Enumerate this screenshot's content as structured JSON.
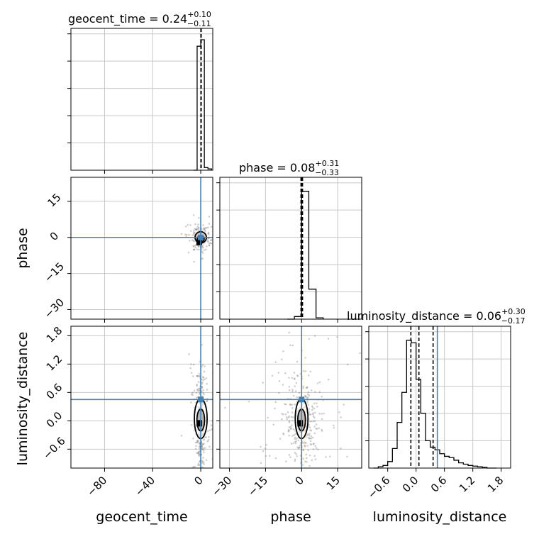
{
  "chart_data": {
    "type": "corner",
    "parameters": [
      "geocent_time",
      "phase",
      "luminosity_distance"
    ],
    "colors": {
      "truth": "#4682b4",
      "hist": "#000000",
      "points": "#808080"
    },
    "grid": true,
    "titles": [
      {
        "name": "geocent_time",
        "value": "0.24",
        "plus": "+0.10",
        "minus": "−0.11"
      },
      {
        "name": "phase",
        "value": "0.08",
        "plus": "+0.31",
        "minus": "−0.33"
      },
      {
        "name": "luminosity_distance",
        "value": "0.06",
        "plus": "+0.30",
        "minus": "−0.17"
      }
    ],
    "truths": {
      "geocent_time": 0.0,
      "phase": 0.0,
      "luminosity_distance": 0.45
    },
    "ranges": {
      "geocent_time": [
        -108,
        10
      ],
      "phase": [
        -34,
        25
      ],
      "luminosity_distance": [
        -1.0,
        2.0
      ]
    },
    "ticks": {
      "geocent_time": {
        "values": [
          -80,
          -40,
          0
        ],
        "labels": [
          "−80",
          "−40",
          "0"
        ]
      },
      "phase": {
        "values": [
          -30,
          -15,
          0,
          15
        ],
        "labels": [
          "−30",
          "−15",
          "0",
          "15"
        ]
      },
      "luminosity_distance": {
        "values": [
          -0.6,
          0.0,
          0.6,
          1.2,
          1.8
        ],
        "labels": [
          "−0.6",
          "0.0",
          "0.6",
          "1.2",
          "1.8"
        ]
      }
    },
    "quantile_lines": {
      "geocent_time": [
        0.13,
        0.24,
        0.34
      ],
      "phase": [
        -0.25,
        0.08,
        0.39
      ],
      "luminosity_distance": [
        -0.11,
        0.06,
        0.36
      ]
    },
    "histograms": {
      "geocent_time": {
        "edges": [
          -6,
          -3,
          0,
          3,
          6,
          9
        ],
        "counts": [
          0.0,
          0.95,
          1.0,
          0.02,
          0.01
        ]
      },
      "phase": {
        "edges": [
          -6,
          -3,
          0,
          3,
          6,
          9
        ],
        "counts": [
          0.0,
          0.02,
          0.98,
          0.23,
          0.01
        ]
      },
      "luminosity_distance": {
        "edges": [
          -0.9,
          -0.8,
          -0.7,
          -0.6,
          -0.5,
          -0.4,
          -0.3,
          -0.2,
          -0.1,
          0.0,
          0.1,
          0.2,
          0.3,
          0.4,
          0.5,
          0.6,
          0.7,
          0.8,
          0.9,
          1.0,
          1.1,
          1.2,
          1.3,
          1.4,
          1.5,
          1.6,
          1.7
        ],
        "counts": [
          0.0,
          0.01,
          0.02,
          0.05,
          0.15,
          0.35,
          0.58,
          0.98,
          0.96,
          0.68,
          0.42,
          0.21,
          0.16,
          0.14,
          0.11,
          0.09,
          0.08,
          0.06,
          0.04,
          0.03,
          0.02,
          0.015,
          0.01,
          0.005,
          0.0,
          0.0
        ]
      }
    },
    "scatter_center": {
      "phase_vs_geocent_time": [
        0.0,
        0.0
      ],
      "luminosity_distance_vs_geocent_time": [
        0.0,
        0.0
      ],
      "luminosity_distance_vs_phase": [
        0.0,
        0.0
      ]
    }
  }
}
